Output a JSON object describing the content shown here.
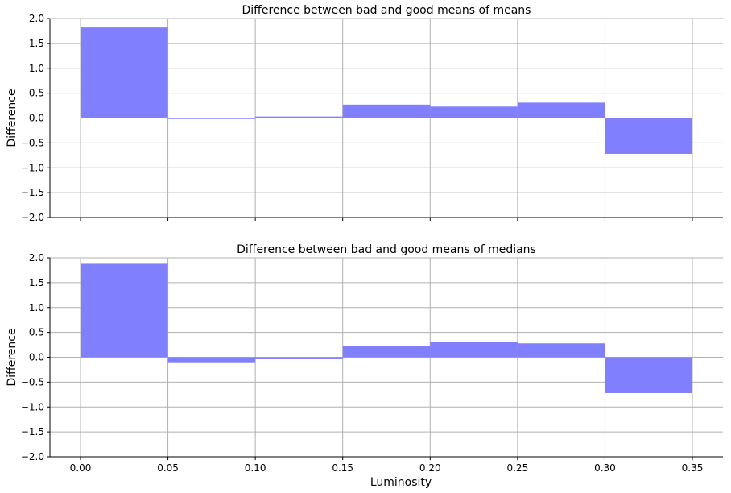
{
  "chart_data": [
    {
      "type": "bar",
      "title": "Difference between bad and good means of means",
      "xlabel": "",
      "ylabel": "Difference",
      "bin_edges": [
        0.0,
        0.05,
        0.1,
        0.15,
        0.2,
        0.25,
        0.3,
        0.35
      ],
      "values": [
        1.82,
        -0.02,
        0.03,
        0.27,
        0.23,
        0.31,
        -0.72
      ],
      "xlim": [
        -0.0175,
        0.3675
      ],
      "ylim": [
        -2.0,
        2.0
      ],
      "yticks": [
        "−2.0",
        "−1.5",
        "−1.0",
        "−0.5",
        "0.0",
        "0.5",
        "1.0",
        "1.5",
        "2.0"
      ],
      "xticks": [],
      "bar_color": "#8080ff",
      "grid": true
    },
    {
      "type": "bar",
      "title": "Difference between bad and good means of medians",
      "xlabel": "Luminosity",
      "ylabel": "Difference",
      "bin_edges": [
        0.0,
        0.05,
        0.1,
        0.15,
        0.2,
        0.25,
        0.3,
        0.35
      ],
      "values": [
        1.88,
        -0.1,
        -0.04,
        0.22,
        0.31,
        0.28,
        -0.72
      ],
      "xlim": [
        -0.0175,
        0.3675
      ],
      "ylim": [
        -2.0,
        2.0
      ],
      "yticks": [
        "−2.0",
        "−1.5",
        "−1.0",
        "−0.5",
        "0.0",
        "0.5",
        "1.0",
        "1.5",
        "2.0"
      ],
      "xticks": [
        "0.00",
        "0.05",
        "0.10",
        "0.15",
        "0.20",
        "0.25",
        "0.30",
        "0.35"
      ],
      "bar_color": "#8080ff",
      "grid": true
    }
  ]
}
